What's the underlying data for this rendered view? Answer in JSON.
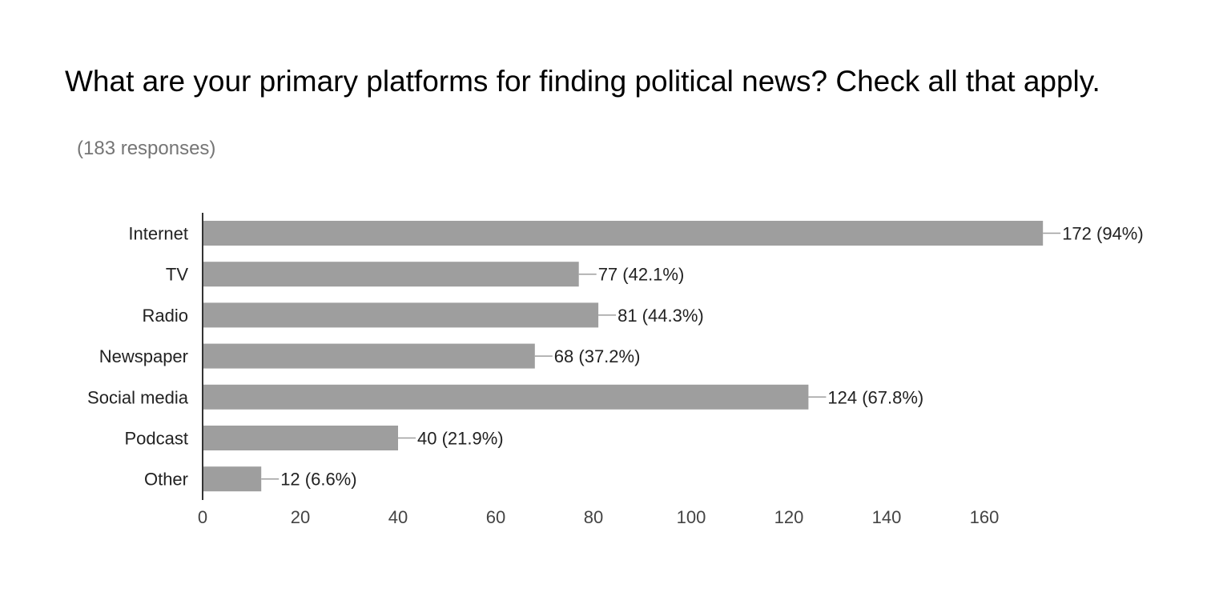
{
  "header": {
    "question": "What are your primary platforms for finding political news? Check all that apply.",
    "responses": "(183 responses)"
  },
  "colors": {
    "bar": "#9e9e9e",
    "axis": "#333333",
    "leader": "#9e9e9e"
  },
  "chart_data": {
    "type": "bar",
    "orientation": "horizontal",
    "categories": [
      "Internet",
      "TV",
      "Radio",
      "Newspaper",
      "Social media",
      "Podcast",
      "Other"
    ],
    "values": [
      172,
      77,
      81,
      68,
      124,
      40,
      12
    ],
    "data_labels": [
      "172 (94%)",
      "77 (42.1%)",
      "81 (44.3%)",
      "68 (37.2%)",
      "124 (67.8%)",
      "40 (21.9%)",
      "12 (6.6%)"
    ],
    "x_ticks": [
      0,
      20,
      40,
      60,
      80,
      100,
      120,
      140,
      160
    ],
    "xlim": [
      0,
      172
    ],
    "grid": false,
    "legend": "none"
  }
}
